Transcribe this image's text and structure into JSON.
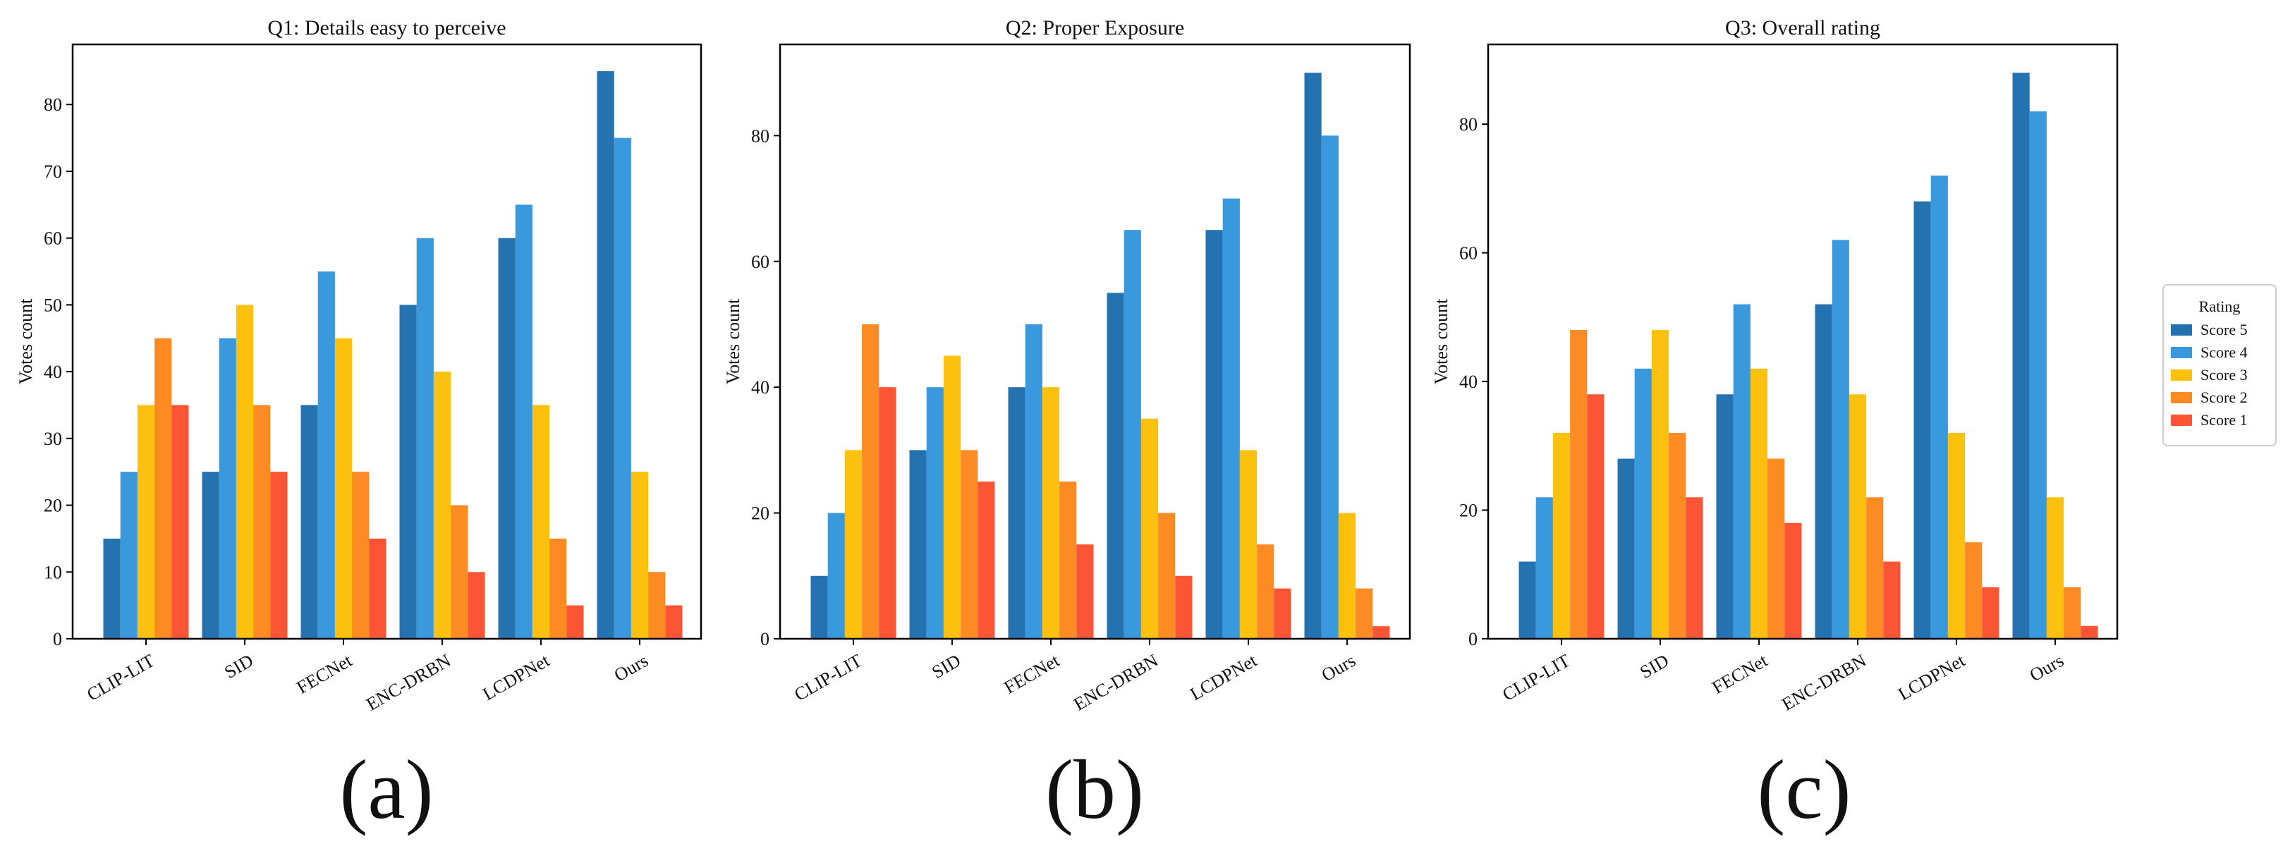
{
  "legend": {
    "title": "Rating",
    "entries": [
      "Score 5",
      "Score 4",
      "Score 3",
      "Score 2",
      "Score 1"
    ],
    "colors": [
      "#2472b0",
      "#3a98dc",
      "#fcc10f",
      "#fb8b22",
      "#fc5535"
    ]
  },
  "panel_labels": [
    "(a)",
    "(b)",
    "(c)"
  ],
  "chart_data": [
    {
      "type": "bar",
      "title": "Q1: Details easy to perceive",
      "ylabel": "Votes count",
      "xlabel": "",
      "categories": [
        "CLIP-LIT",
        "SID",
        "FECNet",
        "ENC-DRBN",
        "LCDPNet",
        "Ours"
      ],
      "ylim": [
        0,
        89
      ],
      "yticks": [
        0,
        10,
        20,
        30,
        40,
        50,
        60,
        70,
        80
      ],
      "series": [
        {
          "name": "Score 5",
          "values": [
            15,
            25,
            35,
            50,
            60,
            85
          ]
        },
        {
          "name": "Score 4",
          "values": [
            25,
            45,
            55,
            60,
            65,
            75
          ]
        },
        {
          "name": "Score 3",
          "values": [
            35,
            50,
            45,
            40,
            35,
            25
          ]
        },
        {
          "name": "Score 2",
          "values": [
            45,
            35,
            25,
            20,
            15,
            10
          ]
        },
        {
          "name": "Score 1",
          "values": [
            35,
            25,
            15,
            10,
            5,
            5
          ]
        }
      ]
    },
    {
      "type": "bar",
      "title": "Q2: Proper Exposure",
      "ylabel": "Votes count",
      "xlabel": "",
      "categories": [
        "CLIP-LIT",
        "SID",
        "FECNet",
        "ENC-DRBN",
        "LCDPNet",
        "Ours"
      ],
      "ylim": [
        0,
        94.5
      ],
      "yticks": [
        0,
        20,
        40,
        60,
        80
      ],
      "series": [
        {
          "name": "Score 5",
          "values": [
            10,
            30,
            40,
            55,
            65,
            90
          ]
        },
        {
          "name": "Score 4",
          "values": [
            20,
            40,
            50,
            65,
            70,
            80
          ]
        },
        {
          "name": "Score 3",
          "values": [
            30,
            45,
            40,
            35,
            30,
            20
          ]
        },
        {
          "name": "Score 2",
          "values": [
            50,
            30,
            25,
            20,
            15,
            8
          ]
        },
        {
          "name": "Score 1",
          "values": [
            40,
            25,
            15,
            10,
            8,
            2
          ]
        }
      ]
    },
    {
      "type": "bar",
      "title": "Q3: Overall rating",
      "ylabel": "Votes count",
      "xlabel": "",
      "categories": [
        "CLIP-LIT",
        "SID",
        "FECNet",
        "ENC-DRBN",
        "LCDPNet",
        "Ours"
      ],
      "ylim": [
        0,
        92.4
      ],
      "yticks": [
        0,
        20,
        40,
        60,
        80
      ],
      "series": [
        {
          "name": "Score 5",
          "values": [
            12,
            28,
            38,
            52,
            68,
            88
          ]
        },
        {
          "name": "Score 4",
          "values": [
            22,
            42,
            52,
            62,
            72,
            82
          ]
        },
        {
          "name": "Score 3",
          "values": [
            32,
            48,
            42,
            38,
            32,
            22
          ]
        },
        {
          "name": "Score 2",
          "values": [
            48,
            32,
            28,
            22,
            15,
            8
          ]
        },
        {
          "name": "Score 1",
          "values": [
            38,
            22,
            18,
            12,
            8,
            2
          ]
        }
      ]
    }
  ]
}
